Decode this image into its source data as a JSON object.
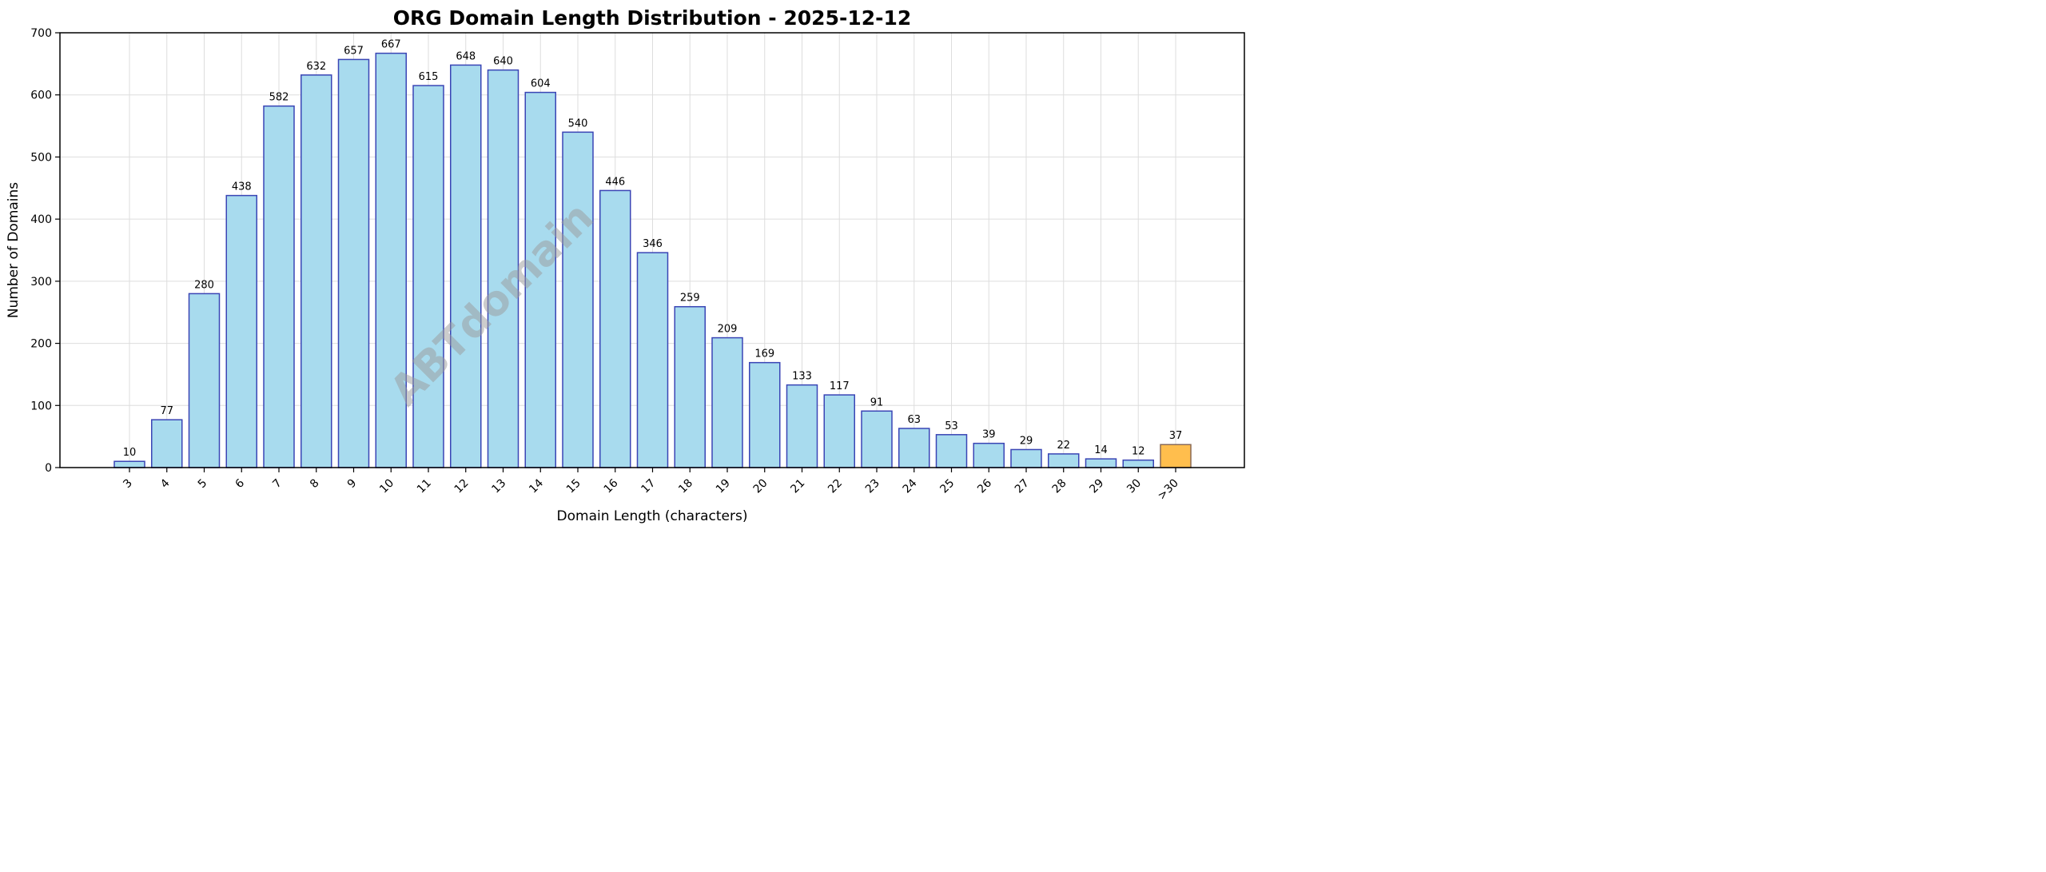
{
  "chart_data": {
    "type": "bar",
    "title": "ORG Domain Length Distribution - 2025-12-12",
    "xlabel": "Domain Length (characters)",
    "ylabel": "Number of Domains",
    "categories": [
      "3",
      "4",
      "5",
      "6",
      "7",
      "8",
      "9",
      "10",
      "11",
      "12",
      "13",
      "14",
      "15",
      "16",
      "17",
      "18",
      "19",
      "20",
      "21",
      "22",
      "23",
      "24",
      "25",
      "26",
      "27",
      "28",
      "29",
      "30",
      ">30"
    ],
    "values": [
      10,
      77,
      280,
      438,
      582,
      632,
      657,
      667,
      615,
      648,
      640,
      604,
      540,
      446,
      346,
      259,
      209,
      169,
      133,
      117,
      91,
      63,
      53,
      39,
      29,
      22,
      14,
      12,
      37
    ],
    "ylim": [
      0,
      700
    ],
    "yticks": [
      0,
      100,
      200,
      300,
      400,
      500,
      600,
      700
    ],
    "grid": true,
    "bar_color": "#a8dbee",
    "bar_edge_color": "#3a45b5",
    "highlight_color": "#ffbe4d",
    "highlight_edge_color": "#8a6a55",
    "highlight_category": ">30",
    "watermark": "ABTdomain"
  }
}
